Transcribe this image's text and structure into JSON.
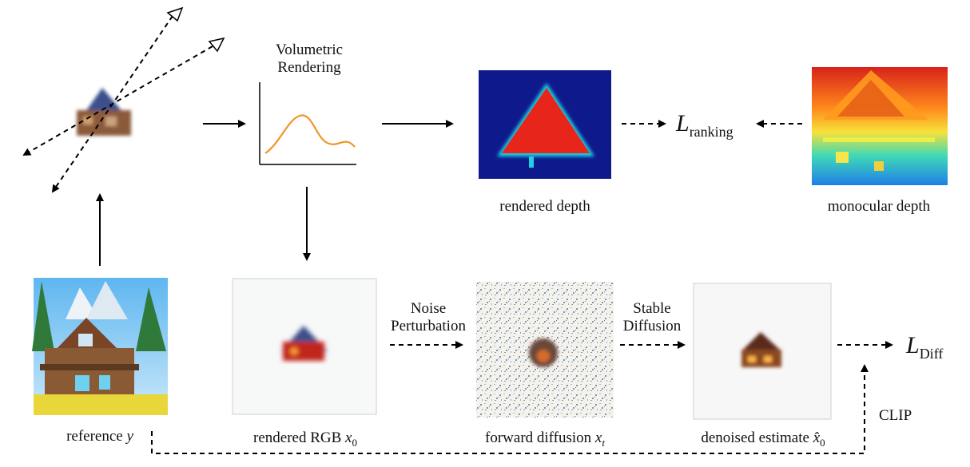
{
  "labels": {
    "volumetric_line1": "Volumetric",
    "volumetric_line2": "Rendering",
    "rendered_depth": "rendered depth",
    "monocular_depth": "monocular depth",
    "noise_line1": "Noise",
    "noise_line2": "Perturbation",
    "stable_line1": "Stable",
    "stable_line2": "Diffusion",
    "clip": "CLIP",
    "reference": "reference",
    "reference_var": "y",
    "rendered_rgb": "rendered RGB",
    "rendered_rgb_var": "x",
    "rendered_rgb_sub": "0",
    "forward_diffusion": "forward diffusion",
    "forward_diffusion_var": "x",
    "forward_diffusion_sub": "t",
    "denoised_estimate": "denoised estimate",
    "denoised_var": "x̂",
    "denoised_sub": "0"
  },
  "losses": {
    "ranking_symbol": "L",
    "ranking_sub": "ranking",
    "diff_symbol": "L",
    "diff_sub": "Diff"
  },
  "colors": {
    "curve": "#f0952a",
    "depth_bg": "#0e1a8c",
    "depth_red": "#e8251b",
    "arrow": "#000000"
  }
}
